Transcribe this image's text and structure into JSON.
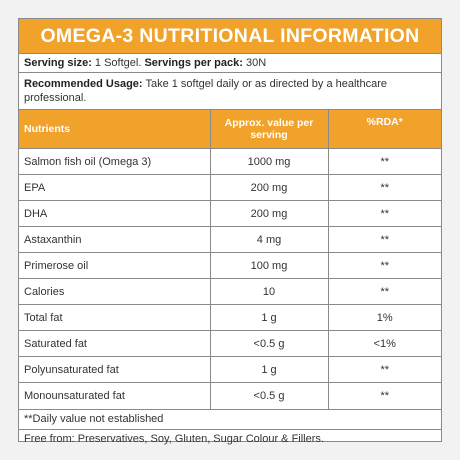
{
  "title": "OMEGA-3 NUTRITIONAL INFORMATION",
  "serving": {
    "size_label": "Serving size:",
    "size_value": "1 Softgel.",
    "servings_label": "Servings per pack:",
    "servings_value": "30N"
  },
  "usage": {
    "label": "Recommended Usage:",
    "text": "Take 1 softgel daily or as directed by a healthcare professional."
  },
  "table": {
    "headers": [
      "Nutrients",
      "Approx. value per serving",
      "%RDA*"
    ],
    "rows": [
      [
        "Salmon fish oil (Omega 3)",
        "1000 mg",
        "**"
      ],
      [
        "EPA",
        "200 mg",
        "**"
      ],
      [
        "DHA",
        "200 mg",
        "**"
      ],
      [
        "Astaxanthin",
        "4 mg",
        "**"
      ],
      [
        "Primerose oil",
        "100 mg",
        "**"
      ],
      [
        "Calories",
        "10",
        "**"
      ],
      [
        "Total fat",
        "1 g",
        "1%"
      ],
      [
        "Saturated fat",
        "<0.5 g",
        "<1%"
      ],
      [
        "Polyunsaturated fat",
        "1 g",
        "**"
      ],
      [
        "Monounsaturated fat",
        "<0.5 g",
        "**"
      ]
    ]
  },
  "footnote": "**Daily value not established",
  "free_from": "Free from: Preservatives, Soy, Gluten, Sugar Colour & Fillers.",
  "colors": {
    "accent": "#f0a22b",
    "border": "#8a8a8a",
    "text": "#333333",
    "background": "#f2f2f2"
  }
}
